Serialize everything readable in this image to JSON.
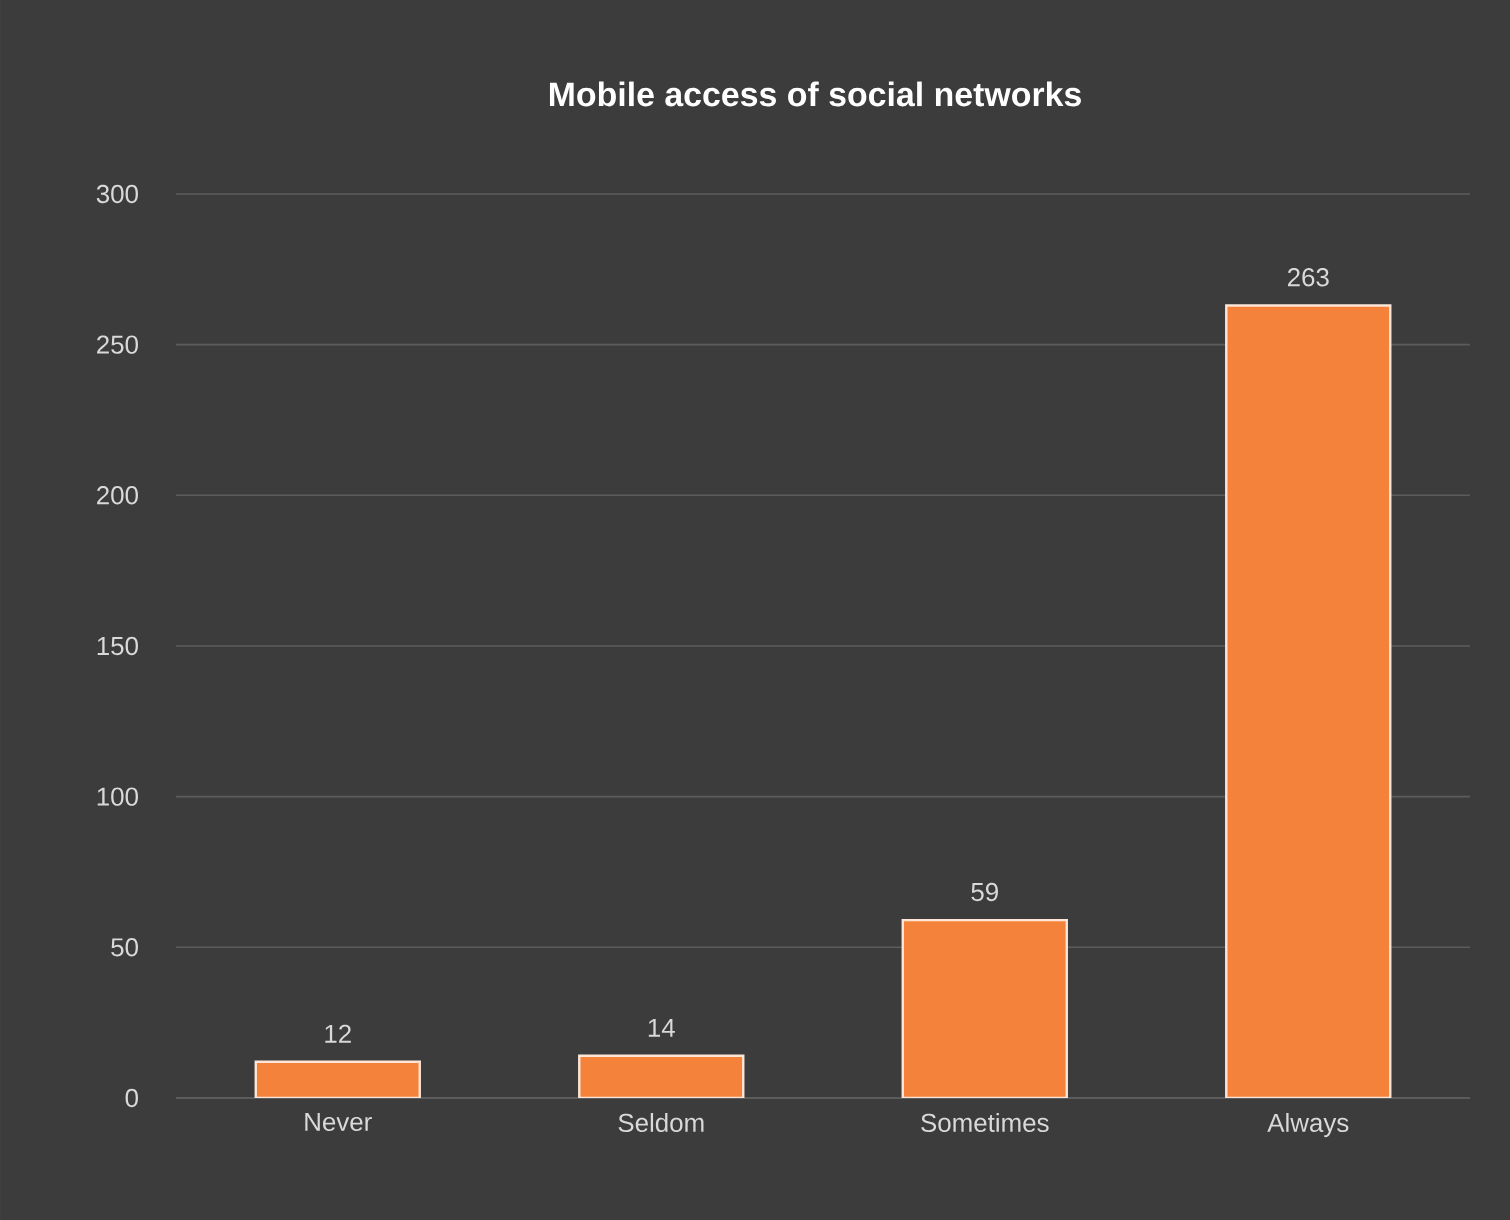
{
  "chart_data": {
    "type": "bar",
    "title": "Mobile access of social networks",
    "categories": [
      "Never",
      "Seldom",
      "Sometimes",
      "Always"
    ],
    "values": [
      12,
      14,
      59,
      263
    ],
    "color": "#f5823a",
    "ylim": [
      0,
      300
    ],
    "yticks": [
      0,
      50,
      100,
      150,
      200,
      250,
      300
    ],
    "grid": "y",
    "data_labels": true
  }
}
